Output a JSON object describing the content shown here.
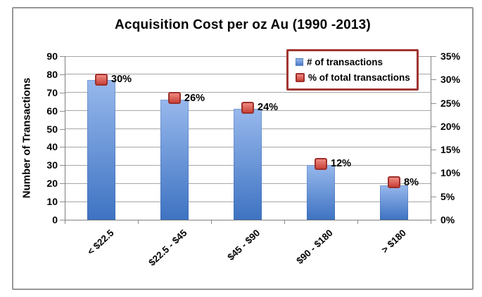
{
  "chart_data": {
    "type": "bar",
    "title": "Acquisition Cost per oz Au (1990 -2013)",
    "categories": [
      "< $22.5",
      "$22.5 - $45",
      "$45 - $90",
      "$90 - $180",
      "> $180"
    ],
    "series": [
      {
        "name": "# of transactions",
        "type": "bar",
        "axis": "left",
        "values": [
          77,
          66,
          61,
          30,
          19
        ]
      },
      {
        "name": "% of total transactions",
        "type": "point",
        "axis": "right",
        "values": [
          30,
          26,
          24,
          12,
          8
        ],
        "labels": [
          "30%",
          "26%",
          "24%",
          "12%",
          "8%"
        ]
      }
    ],
    "left_axis": {
      "label": "Number of Transactions",
      "min": 0,
      "max": 90,
      "step": 10,
      "tick_labels": [
        "0",
        "10",
        "20",
        "30",
        "40",
        "50",
        "60",
        "70",
        "80",
        "90"
      ]
    },
    "right_axis": {
      "min": 0,
      "max": 35,
      "step": 5,
      "tick_labels": [
        "0%",
        "5%",
        "10%",
        "15%",
        "20%",
        "25%",
        "30%",
        "35%"
      ]
    },
    "legend": {
      "position": "top-right"
    },
    "grid": true,
    "colors": {
      "bar_top": "#97b8ec",
      "bar_bottom": "#3e73c2",
      "marker_fill_top": "#ee8b82",
      "marker_fill_bottom": "#c94138",
      "marker_border": "#9c2f2b",
      "gridline": "#a6a6a6",
      "axis_line": "#808080",
      "legend_border": "#a03633",
      "frame_border": "#969696",
      "text": "#000000"
    }
  }
}
